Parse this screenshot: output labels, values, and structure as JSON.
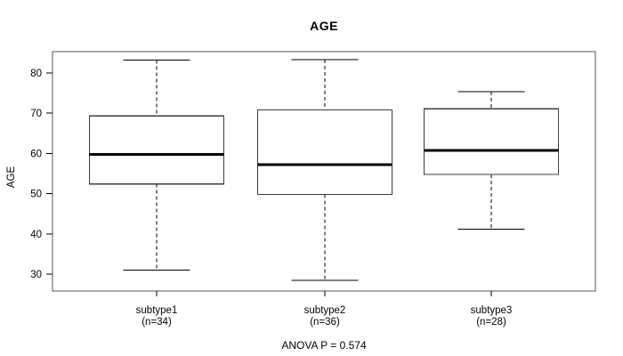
{
  "figure": {
    "title": "AGE",
    "footnote": "ANOVA P = 0.574"
  },
  "chart_data": {
    "type": "boxplot",
    "title": "AGE",
    "xlabel": "",
    "ylabel": "AGE",
    "yticks": [
      30,
      40,
      50,
      60,
      70,
      80
    ],
    "ylim": [
      25.8,
      85.3
    ],
    "grid": false,
    "footnote": "ANOVA P = 0.574",
    "categories": [
      "subtype1",
      "subtype2",
      "subtype3"
    ],
    "category_sublabels": [
      "(n=34)",
      "(n=36)",
      "(n=28)"
    ],
    "series": [
      {
        "name": "subtype1",
        "n": 34,
        "min": 31,
        "q1": 52.4,
        "median": 59.8,
        "q3": 69.3,
        "max": 83.2
      },
      {
        "name": "subtype2",
        "n": 36,
        "min": 28.5,
        "q1": 49.8,
        "median": 57.2,
        "q3": 70.8,
        "max": 83.3
      },
      {
        "name": "subtype3",
        "n": 28,
        "min": 41.2,
        "q1": 54.8,
        "median": 60.7,
        "q3": 71.1,
        "max": 75.3
      }
    ],
    "colors": {
      "box_fill": "#ffffff",
      "line": "#000000",
      "frame": "#565656",
      "box_border": "#3d3d3d"
    }
  }
}
